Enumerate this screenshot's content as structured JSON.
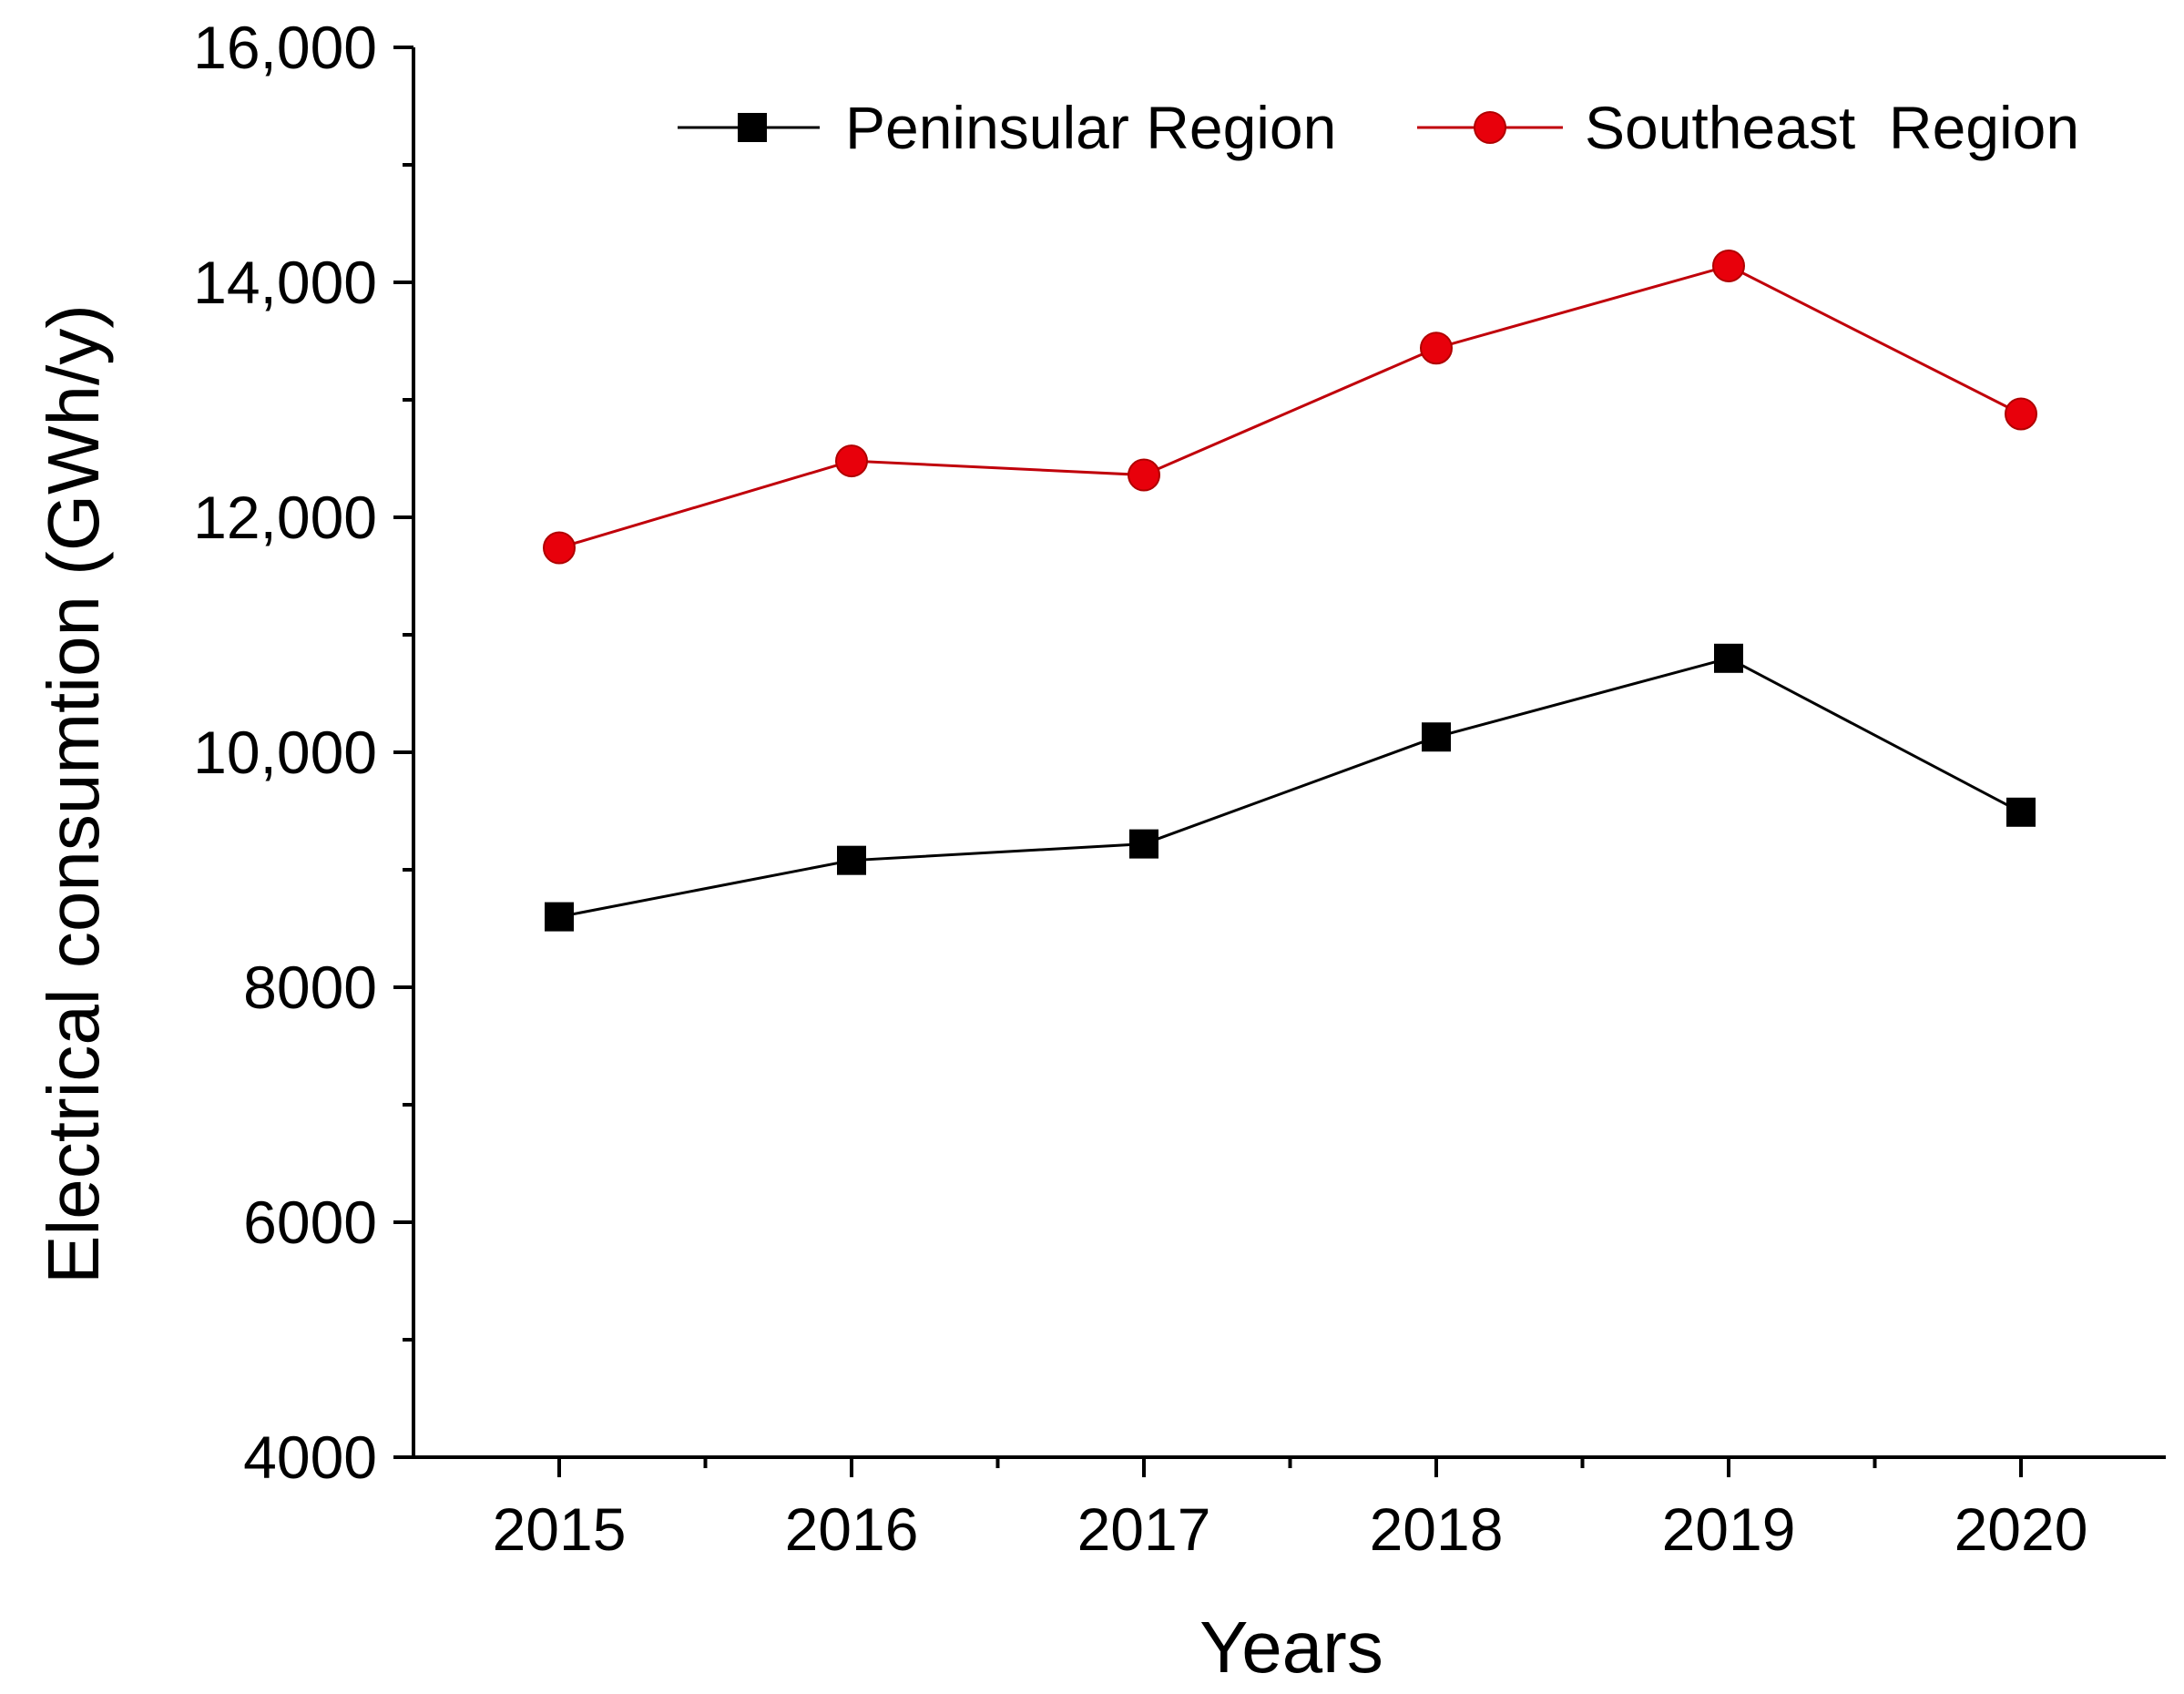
{
  "chart_data": {
    "type": "line",
    "title": "",
    "xlabel": "Years",
    "ylabel": "Electrical consumtion (GWh/y)",
    "categories": [
      "2015",
      "2016",
      "2017",
      "2018",
      "2019",
      "2020"
    ],
    "ylim": [
      4000,
      16000
    ],
    "yticks": [
      4000,
      6000,
      8000,
      10000,
      12000,
      14000,
      16000
    ],
    "ytick_labels": [
      "4000",
      "6000",
      "8000",
      "10,000",
      "12,000",
      "14,000",
      "16,000"
    ],
    "legend_position": "top-right",
    "grid": false,
    "series": [
      {
        "name": "Peninsular Region",
        "marker": "square",
        "color": "#000000",
        "values": [
          8600,
          9080,
          9220,
          10130,
          10800,
          9490
        ]
      },
      {
        "name": "Southeast  Region",
        "marker": "circle",
        "color": "#e8000b",
        "values": [
          11740,
          12480,
          12360,
          13440,
          14140,
          12880
        ]
      }
    ]
  }
}
